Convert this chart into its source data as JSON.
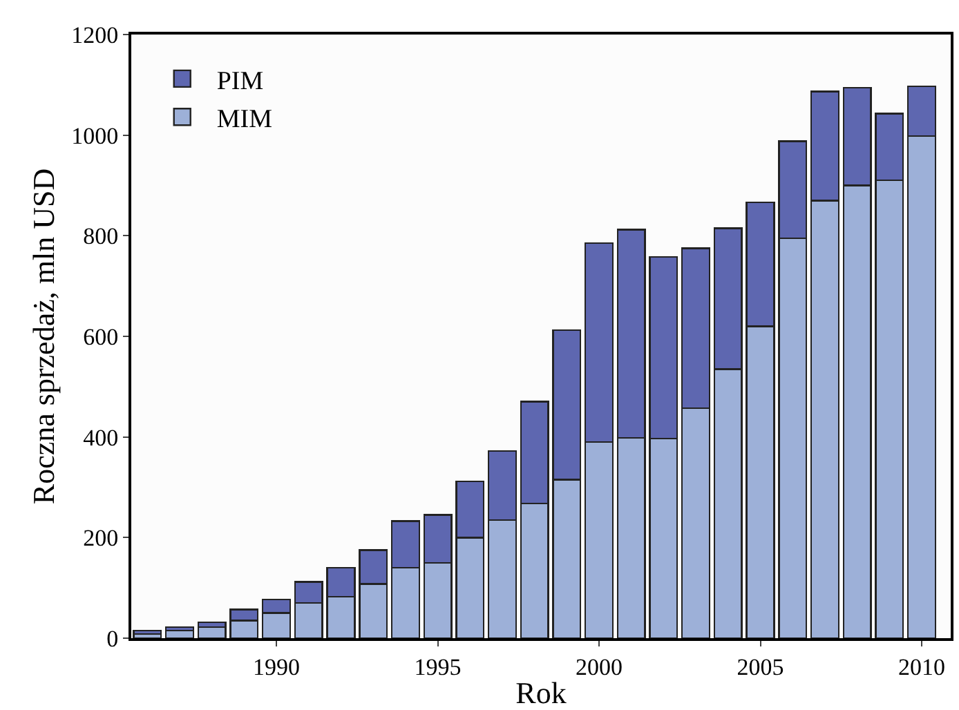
{
  "chart_data": {
    "type": "bar",
    "stacked": true,
    "xlabel": "Rok",
    "ylabel": "Roczna sprzedaż, mln USD",
    "x": [
      1986,
      1987,
      1988,
      1989,
      1990,
      1991,
      1992,
      1993,
      1994,
      1995,
      1996,
      1997,
      1998,
      1999,
      2000,
      2001,
      2002,
      2003,
      2004,
      2005,
      2006,
      2007,
      2008,
      2009,
      2010
    ],
    "series": [
      {
        "name": "MIM",
        "color": "#9db0d8",
        "values": [
          8,
          15,
          22,
          35,
          50,
          70,
          82,
          108,
          140,
          150,
          200,
          235,
          268,
          315,
          390,
          398,
          397,
          457,
          535,
          620,
          795,
          870,
          900,
          910,
          998
        ]
      },
      {
        "name": "PIM",
        "color": "#5e67b0",
        "values": [
          7,
          7,
          10,
          22,
          27,
          42,
          58,
          67,
          93,
          95,
          112,
          137,
          202,
          297,
          395,
          414,
          361,
          318,
          280,
          246,
          193,
          217,
          194,
          133,
          99
        ]
      }
    ],
    "xlim": [
      1985.5,
      2010.9
    ],
    "xticks": [
      1990,
      1995,
      2000,
      2005,
      2010
    ],
    "ylim": [
      0,
      1200
    ],
    "yticks": [
      0,
      200,
      400,
      600,
      800,
      1000,
      1200
    ],
    "legend": "top left"
  }
}
